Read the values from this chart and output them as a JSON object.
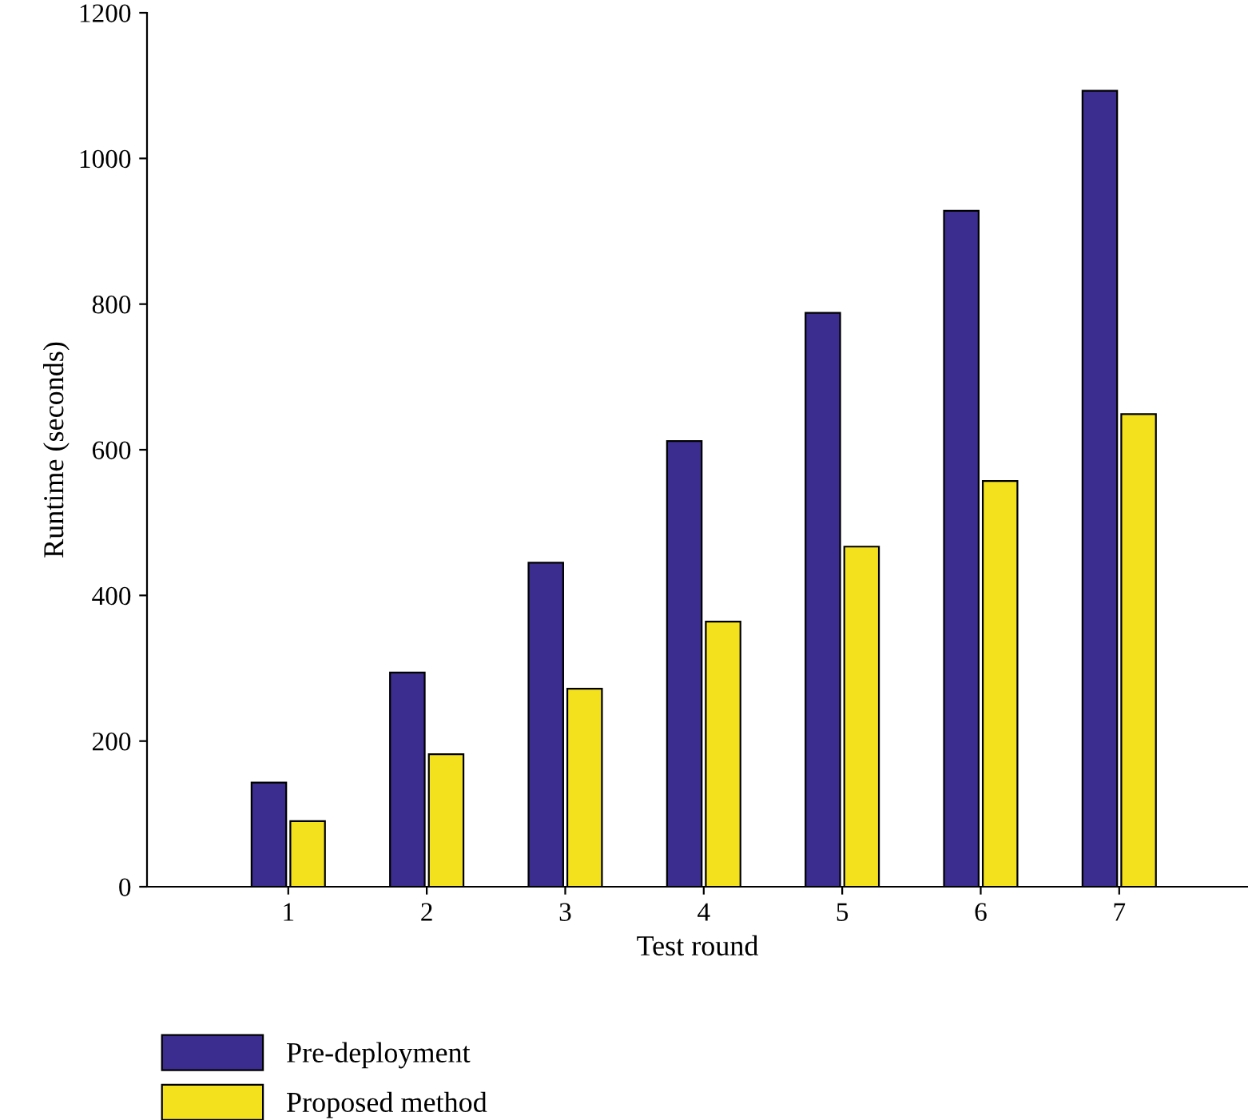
{
  "chart_data": {
    "type": "bar",
    "xlabel": "Test round",
    "ylabel": "Runtime (seconds)",
    "categories": [
      "1",
      "2",
      "3",
      "4",
      "5",
      "6",
      "7"
    ],
    "series": [
      {
        "name": "Pre-deployment",
        "color": "#3b2d8f",
        "values": [
          143,
          294,
          445,
          612,
          788,
          928,
          1093
        ]
      },
      {
        "name": "Proposed method",
        "color": "#f4e11e",
        "values": [
          90,
          182,
          272,
          364,
          467,
          557,
          649
        ]
      }
    ],
    "ylim": [
      0,
      1200
    ],
    "yticks": [
      0,
      200,
      400,
      600,
      800,
      1000,
      1200
    ],
    "grid": false,
    "legend": "bottom left"
  }
}
